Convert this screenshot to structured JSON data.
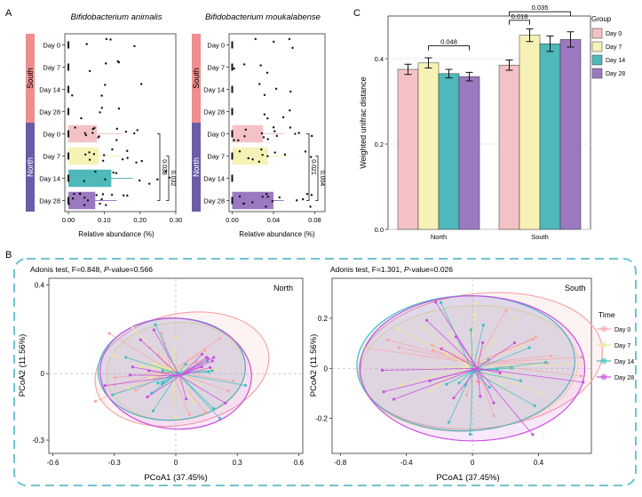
{
  "colors": {
    "day0": "#F4C2C4",
    "day7": "#F6F2B5",
    "day14": "#4EB8BB",
    "day28": "#9B79C0",
    "south": "#EE8E8E",
    "north": "#6A5CA6",
    "border": "#6FC3D2",
    "pcoa_day0": "#F7A6A6",
    "pcoa_day7": "#EDE69B",
    "pcoa_day14": "#3FBFC0",
    "pcoa_day28": "#C84FE0"
  },
  "panel_labels": {
    "a": "A",
    "b": "B",
    "c": "C"
  },
  "groups": [
    "South",
    "North"
  ],
  "days": [
    "Day 0",
    "Day 7",
    "Day 14",
    "Day 28"
  ],
  "chart_data": [
    {
      "id": "A1",
      "type": "bar",
      "title": "Bifidobacterium animalis",
      "orientation": "horizontal",
      "xlabel": "Relative abundance (%)",
      "ylabel": "",
      "xlim": [
        -0.01,
        0.3
      ],
      "xticks": [
        "0.00",
        "0.10",
        "0.20",
        "0.30"
      ],
      "categories": [
        "Day 0",
        "Day 7",
        "Day 14",
        "Day 28",
        "Day 0",
        "Day 7",
        "Day 14",
        "Day 28"
      ],
      "group_of_category": [
        "South",
        "South",
        "South",
        "South",
        "North",
        "North",
        "North",
        "North"
      ],
      "values": [
        0.0,
        0.0,
        0.0,
        0.0,
        0.08,
        0.085,
        0.12,
        0.075
      ],
      "errors": [
        0.0,
        0.0,
        0.0,
        0.0,
        0.07,
        0.06,
        0.06,
        0.06
      ],
      "significance": [
        {
          "label": "0.038",
          "from": "North Day 0",
          "to": "North Day 28"
        },
        {
          "label": "0.032",
          "from": "North Day 7",
          "to": "North Day 28"
        }
      ]
    },
    {
      "id": "A2",
      "type": "bar",
      "title": "Bifidobacterium moukalabense",
      "orientation": "horizontal",
      "xlabel": "Relative abundance (%)",
      "ylabel": "",
      "xlim": [
        -0.003,
        0.09
      ],
      "xticks": [
        "0.00",
        "0.04",
        "0.08"
      ],
      "categories": [
        "Day 0",
        "Day 7",
        "Day 14",
        "Day 28",
        "Day 0",
        "Day 7",
        "Day 14",
        "Day 28"
      ],
      "group_of_category": [
        "South",
        "South",
        "South",
        "South",
        "North",
        "North",
        "North",
        "North"
      ],
      "values": [
        0.0,
        0.0,
        0.0,
        0.0,
        0.03,
        0.035,
        0.0,
        0.04
      ],
      "errors": [
        0.0,
        0.0,
        0.0,
        0.0,
        0.02,
        0.02,
        0.0,
        0.01
      ],
      "significance": [
        {
          "label": "0.021",
          "from": "North Day 0",
          "to": "North Day 28"
        },
        {
          "label": "0.004",
          "from": "North Day 7",
          "to": "North Day 28"
        }
      ]
    },
    {
      "id": "C",
      "type": "bar",
      "title": "",
      "xlabel": "",
      "ylabel": "Weighted unifrac distance",
      "ylim": [
        0,
        0.5
      ],
      "yticks": [
        "0.0",
        "0.2",
        "0.4"
      ],
      "categories": [
        "North",
        "South"
      ],
      "series": [
        {
          "name": "Day 0",
          "values": [
            0.375,
            0.385
          ],
          "errors": [
            0.012,
            0.012
          ]
        },
        {
          "name": "Day 7",
          "values": [
            0.39,
            0.455
          ],
          "errors": [
            0.012,
            0.015
          ]
        },
        {
          "name": "Day 14",
          "values": [
            0.365,
            0.435
          ],
          "errors": [
            0.01,
            0.018
          ]
        },
        {
          "name": "Day 28",
          "values": [
            0.358,
            0.445
          ],
          "errors": [
            0.01,
            0.018
          ]
        }
      ],
      "legend_title": "Group",
      "legend_position": "right",
      "significance": [
        {
          "label": "0.048",
          "group": "North",
          "from": "Day 7",
          "to": "Day 28",
          "level": 0.43
        },
        {
          "label": "0.018",
          "group": "South",
          "from": "Day 0",
          "to": "Day 7",
          "level": 0.49
        },
        {
          "label": "0.035",
          "group": "South",
          "from": "Day 0",
          "to": "Day 28",
          "level": 0.51
        }
      ]
    },
    {
      "id": "B1",
      "type": "scatter",
      "title": "North",
      "subtitle_prefix": "Adonis test, F=0.848, ",
      "subtitle_p": "P",
      "subtitle_suffix": "-value=0.566",
      "xlabel": "PCoA1 (37.45%)",
      "ylabel": "PCoA2 (11.56%)",
      "xlim": [
        -0.62,
        0.62
      ],
      "ylim": [
        -0.36,
        0.43
      ],
      "xticks": [
        -0.6,
        -0.3,
        0,
        0.3,
        0.6
      ],
      "yticks": [
        -0.3,
        0,
        0.4
      ],
      "centroids": [
        [
          -0.02,
          0.01
        ],
        [
          -0.01,
          0.02
        ],
        [
          0.01,
          0.0
        ],
        [
          0.02,
          -0.01
        ]
      ],
      "ellipses": [
        {
          "group": "Day 0",
          "cx": 0.03,
          "cy": 0.02,
          "rx": 0.43,
          "ry": 0.25,
          "angle": -12
        },
        {
          "group": "Day 7",
          "cx": 0.0,
          "cy": 0.01,
          "rx": 0.34,
          "ry": 0.22,
          "angle": -5
        },
        {
          "group": "Day 14",
          "cx": -0.02,
          "cy": 0.02,
          "rx": 0.36,
          "ry": 0.23,
          "angle": -3
        },
        {
          "group": "Day 28",
          "cx": 0.0,
          "cy": 0.0,
          "rx": 0.37,
          "ry": 0.25,
          "angle": 4
        }
      ]
    },
    {
      "id": "B2",
      "type": "scatter",
      "title": "South",
      "subtitle_prefix": "Adonis test, F=1.301, ",
      "subtitle_p": "P",
      "subtitle_suffix": "-value=0.026",
      "xlabel": "PCoA1 (37.45%)",
      "ylabel": "PCoA2 (11.56%)",
      "xlim": [
        -0.85,
        0.72
      ],
      "ylim": [
        -0.34,
        0.36
      ],
      "xticks": [
        -0.8,
        -0.4,
        0,
        0.4
      ],
      "yticks": [
        -0.2,
        0,
        0.2
      ],
      "centroids": [
        [
          0.02,
          0.02
        ],
        [
          -0.02,
          0.01
        ],
        [
          0.0,
          -0.01
        ],
        [
          0.03,
          0.0
        ]
      ],
      "ellipses": [
        {
          "group": "Day 0",
          "cx": 0.05,
          "cy": 0.03,
          "rx": 0.74,
          "ry": 0.27,
          "angle": -6
        },
        {
          "group": "Day 7",
          "cx": -0.02,
          "cy": 0.0,
          "rx": 0.66,
          "ry": 0.25,
          "angle": -4
        },
        {
          "group": "Day 14",
          "cx": -0.04,
          "cy": 0.02,
          "rx": 0.66,
          "ry": 0.27,
          "angle": -2
        },
        {
          "group": "Day 28",
          "cx": 0.0,
          "cy": 0.0,
          "rx": 0.68,
          "ry": 0.29,
          "angle": 0
        }
      ]
    }
  ],
  "pcoa_legend": {
    "title": "Time",
    "items": [
      "Day 0",
      "Day 7",
      "Day 14",
      "Day 28"
    ]
  }
}
